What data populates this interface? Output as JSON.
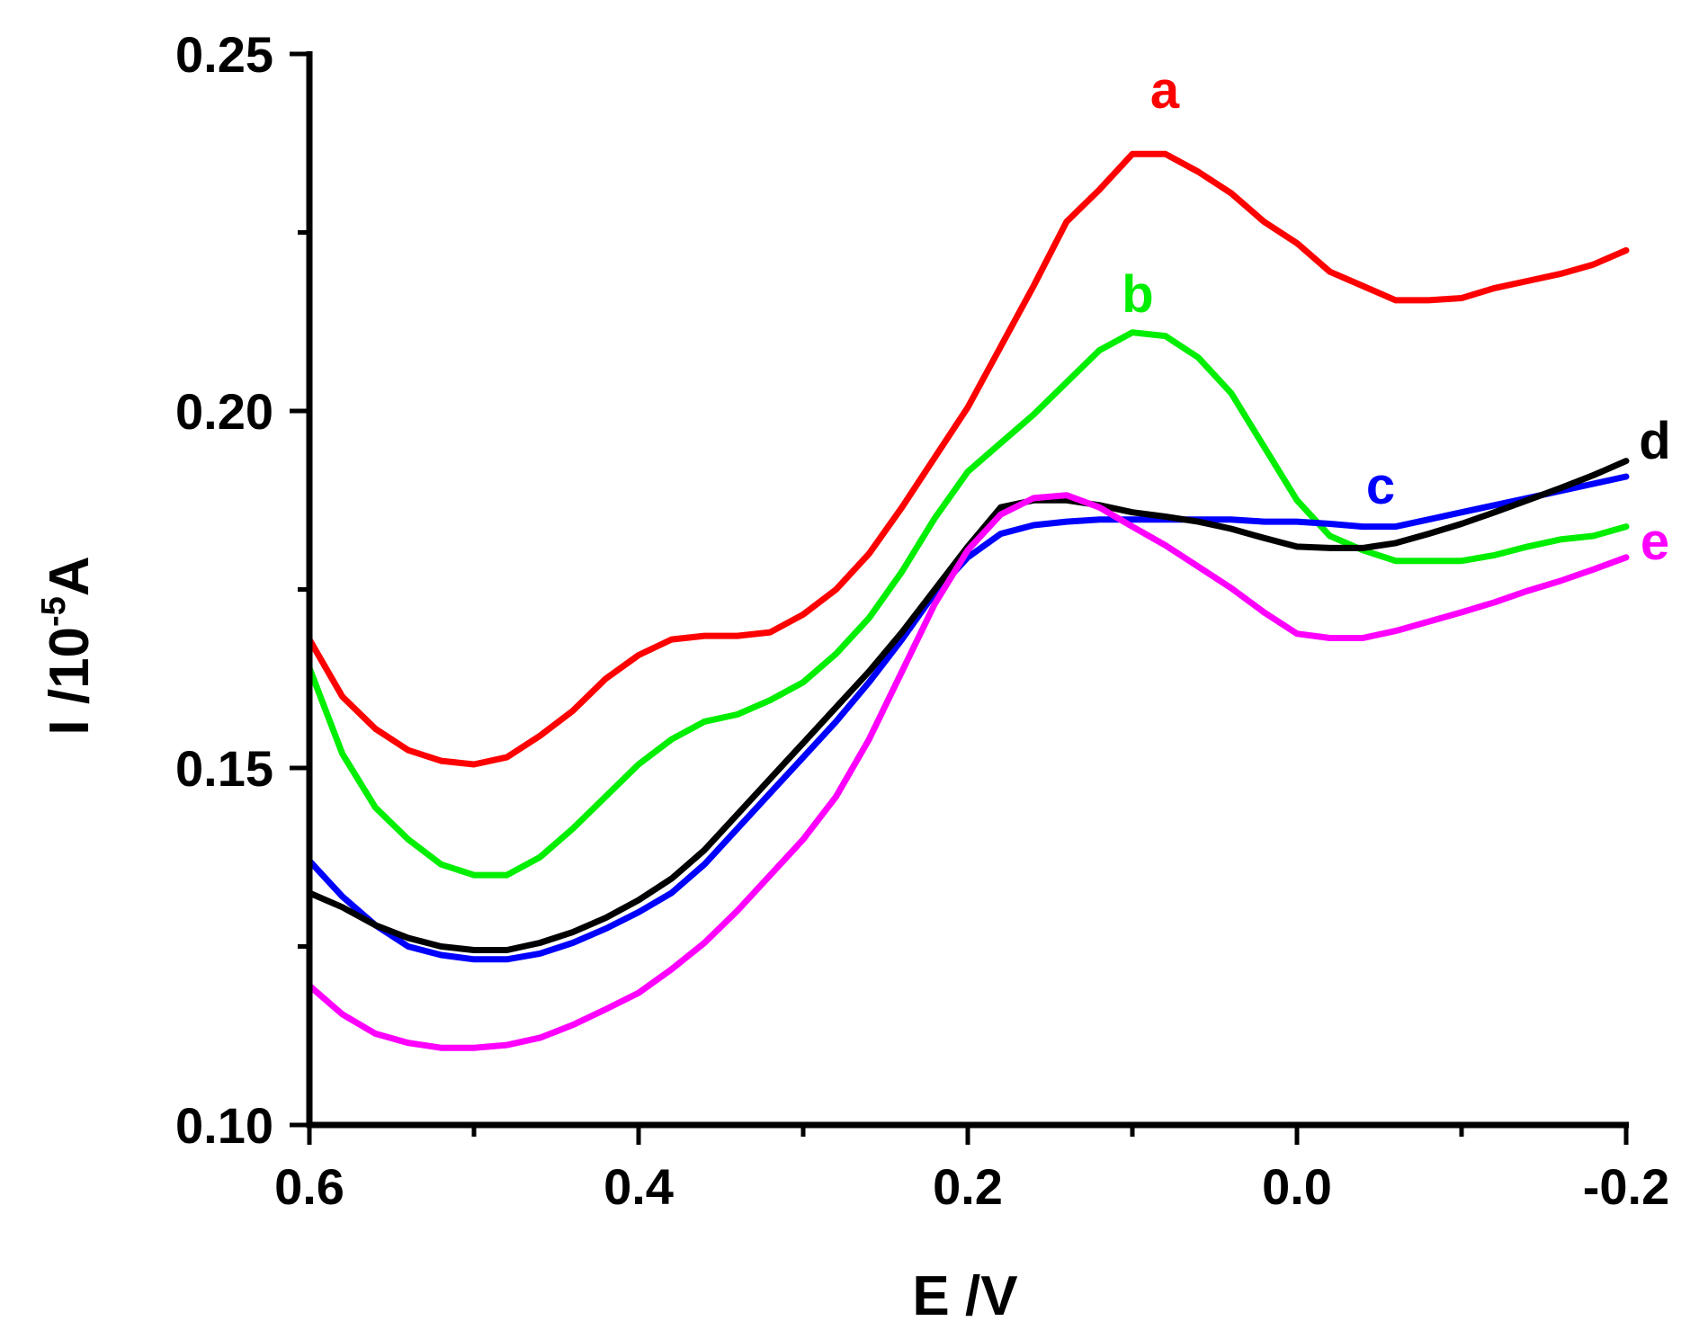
{
  "chart_data": {
    "type": "line",
    "title": "",
    "xlabel": "E /V",
    "ylabel": {
      "prefix": "I /10",
      "exponent": "-5",
      "suffix": "A"
    },
    "xlim": [
      0.6,
      -0.2
    ],
    "ylim": [
      0.1,
      0.25
    ],
    "x_ticks": [
      0.6,
      0.4,
      0.2,
      0.0,
      -0.2
    ],
    "x_tick_labels": [
      "0.6",
      "0.4",
      "0.2",
      "0.0",
      "-0.2"
    ],
    "x_minor_ticks": [
      0.5,
      0.3,
      0.1,
      -0.1
    ],
    "y_ticks": [
      0.1,
      0.15,
      0.2,
      0.25
    ],
    "y_tick_labels": [
      "0.10",
      "0.15",
      "0.20",
      "0.25"
    ],
    "y_minor_ticks": [
      0.125,
      0.175,
      0.225
    ],
    "grid": false,
    "series": [
      {
        "name": "a",
        "color": "#ff0000",
        "x": [
          0.6,
          0.58,
          0.56,
          0.54,
          0.52,
          0.5,
          0.48,
          0.46,
          0.44,
          0.42,
          0.4,
          0.38,
          0.36,
          0.34,
          0.32,
          0.3,
          0.28,
          0.26,
          0.24,
          0.22,
          0.2,
          0.18,
          0.16,
          0.14,
          0.12,
          0.1,
          0.08,
          0.06,
          0.04,
          0.02,
          0.0,
          -0.02,
          -0.04,
          -0.06,
          -0.08,
          -0.1,
          -0.12,
          -0.14,
          -0.16,
          -0.18,
          -0.2
        ],
        "y": [
          0.168,
          0.16,
          0.1555,
          0.1525,
          0.151,
          0.1505,
          0.1515,
          0.1545,
          0.158,
          0.1625,
          0.1658,
          0.168,
          0.1685,
          0.1685,
          0.169,
          0.1715,
          0.175,
          0.18,
          0.1865,
          0.1935,
          0.2005,
          0.209,
          0.2175,
          0.2265,
          0.231,
          0.236,
          0.236,
          0.2335,
          0.2305,
          0.2265,
          0.2235,
          0.2195,
          0.2175,
          0.2155,
          0.2155,
          0.2158,
          0.2172,
          0.2182,
          0.2192,
          0.2205,
          0.2225
        ],
        "label": "a"
      },
      {
        "name": "b",
        "color": "#00ee00",
        "x": [
          0.6,
          0.58,
          0.56,
          0.54,
          0.52,
          0.5,
          0.48,
          0.46,
          0.44,
          0.42,
          0.4,
          0.38,
          0.36,
          0.34,
          0.32,
          0.3,
          0.28,
          0.26,
          0.24,
          0.22,
          0.2,
          0.18,
          0.16,
          0.14,
          0.12,
          0.1,
          0.08,
          0.06,
          0.04,
          0.02,
          0.0,
          -0.02,
          -0.04,
          -0.06,
          -0.08,
          -0.1,
          -0.12,
          -0.14,
          -0.16,
          -0.18,
          -0.2
        ],
        "y": [
          0.164,
          0.152,
          0.1445,
          0.14,
          0.1365,
          0.135,
          0.135,
          0.1375,
          0.1415,
          0.146,
          0.1505,
          0.154,
          0.1565,
          0.1575,
          0.1595,
          0.162,
          0.166,
          0.171,
          0.1775,
          0.185,
          0.1915,
          0.1955,
          0.1995,
          0.204,
          0.2085,
          0.211,
          0.2105,
          0.2075,
          0.2025,
          0.195,
          0.1875,
          0.1825,
          0.1805,
          0.179,
          0.179,
          0.179,
          0.1798,
          0.181,
          0.182,
          0.1825,
          0.1838
        ],
        "label": "b"
      },
      {
        "name": "c",
        "color": "#0000ff",
        "x": [
          0.6,
          0.58,
          0.56,
          0.54,
          0.52,
          0.5,
          0.48,
          0.46,
          0.44,
          0.42,
          0.4,
          0.38,
          0.36,
          0.34,
          0.32,
          0.3,
          0.28,
          0.26,
          0.24,
          0.22,
          0.2,
          0.18,
          0.16,
          0.14,
          0.12,
          0.1,
          0.08,
          0.06,
          0.04,
          0.02,
          0.0,
          -0.02,
          -0.04,
          -0.06,
          -0.08,
          -0.1,
          -0.12,
          -0.14,
          -0.16,
          -0.18,
          -0.2
        ],
        "y": [
          0.137,
          0.132,
          0.128,
          0.125,
          0.1238,
          0.1232,
          0.1232,
          0.124,
          0.1255,
          0.1275,
          0.1298,
          0.1325,
          0.1365,
          0.1415,
          0.1465,
          0.1515,
          0.1565,
          0.162,
          0.168,
          0.1745,
          0.1795,
          0.1828,
          0.184,
          0.1845,
          0.1848,
          0.1848,
          0.1848,
          0.1848,
          0.1848,
          0.1845,
          0.1845,
          0.1842,
          0.1838,
          0.1838,
          0.1848,
          0.1858,
          0.1868,
          0.1878,
          0.1888,
          0.1898,
          0.1908
        ],
        "label": "c"
      },
      {
        "name": "d",
        "color": "#000000",
        "x": [
          0.6,
          0.58,
          0.56,
          0.54,
          0.52,
          0.5,
          0.48,
          0.46,
          0.44,
          0.42,
          0.4,
          0.38,
          0.36,
          0.34,
          0.32,
          0.3,
          0.28,
          0.26,
          0.24,
          0.22,
          0.2,
          0.18,
          0.16,
          0.14,
          0.12,
          0.1,
          0.08,
          0.06,
          0.04,
          0.02,
          0.0,
          -0.02,
          -0.04,
          -0.06,
          -0.08,
          -0.1,
          -0.12,
          -0.14,
          -0.16,
          -0.18,
          -0.2
        ],
        "y": [
          0.1325,
          0.1305,
          0.128,
          0.1262,
          0.125,
          0.1245,
          0.1245,
          0.1255,
          0.127,
          0.129,
          0.1315,
          0.1345,
          0.1385,
          0.1435,
          0.1485,
          0.1535,
          0.1585,
          0.1635,
          0.169,
          0.175,
          0.181,
          0.1865,
          0.1875,
          0.1875,
          0.1868,
          0.1858,
          0.1852,
          0.1845,
          0.1835,
          0.1822,
          0.181,
          0.1808,
          0.1808,
          0.1815,
          0.1828,
          0.1842,
          0.1858,
          0.1875,
          0.1892,
          0.191,
          0.193
        ],
        "label": "d"
      },
      {
        "name": "e",
        "color": "#ff00ff",
        "x": [
          0.6,
          0.58,
          0.56,
          0.54,
          0.52,
          0.5,
          0.48,
          0.46,
          0.44,
          0.42,
          0.4,
          0.38,
          0.36,
          0.34,
          0.32,
          0.3,
          0.28,
          0.26,
          0.24,
          0.22,
          0.2,
          0.18,
          0.16,
          0.14,
          0.12,
          0.1,
          0.08,
          0.06,
          0.04,
          0.02,
          0.0,
          -0.02,
          -0.04,
          -0.06,
          -0.08,
          -0.1,
          -0.12,
          -0.14,
          -0.16,
          -0.18,
          -0.2
        ],
        "y": [
          0.1195,
          0.1155,
          0.1128,
          0.1115,
          0.1108,
          0.1108,
          0.1112,
          0.1122,
          0.114,
          0.1162,
          0.1185,
          0.1218,
          0.1255,
          0.13,
          0.135,
          0.14,
          0.146,
          0.154,
          0.1635,
          0.173,
          0.1805,
          0.1855,
          0.1878,
          0.1882,
          0.1865,
          0.1838,
          0.1812,
          0.1782,
          0.1752,
          0.1718,
          0.1688,
          0.1682,
          0.1682,
          0.1692,
          0.1705,
          0.1718,
          0.1732,
          0.1748,
          0.1762,
          0.1778,
          0.1795
        ],
        "label": "e"
      }
    ]
  }
}
